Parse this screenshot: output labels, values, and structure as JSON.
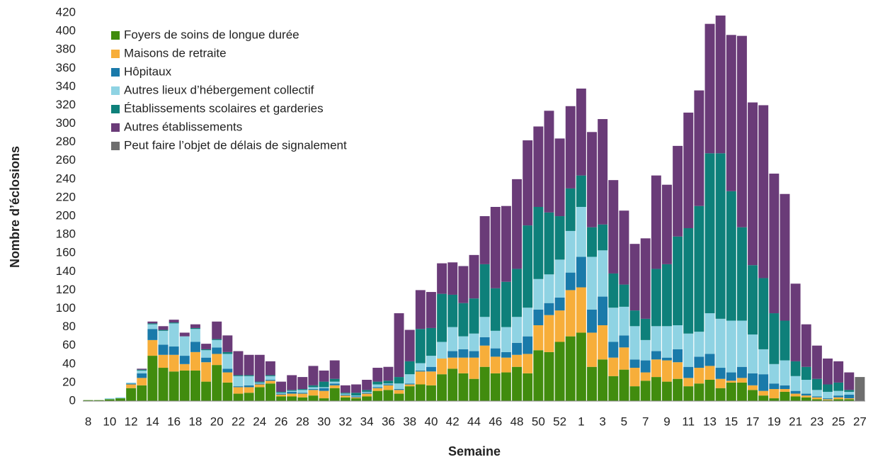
{
  "chart_data": {
    "type": "stacked-bar",
    "x_label": "Semaine",
    "y_label": "Nombre d’éclosions",
    "categories": [
      "8",
      null,
      "10",
      null,
      "12",
      null,
      "14",
      null,
      "16",
      null,
      "18",
      null,
      "20",
      null,
      "22",
      null,
      "24",
      null,
      "26",
      null,
      "28",
      null,
      "30",
      null,
      "32",
      null,
      "34",
      null,
      "36",
      null,
      "38",
      null,
      "40",
      null,
      "42",
      null,
      "44",
      null,
      "46",
      null,
      "48",
      null,
      "50",
      null,
      "52",
      null,
      "1",
      null,
      "3",
      null,
      "5",
      null,
      "7",
      null,
      "9",
      null,
      "11",
      null,
      "13",
      null,
      "15",
      null,
      "17",
      null,
      "19",
      null,
      "21",
      null,
      "23",
      null,
      "25",
      null,
      "27"
    ],
    "ylim": [
      0,
      420
    ],
    "yticks": [
      0,
      20,
      40,
      60,
      80,
      100,
      120,
      140,
      160,
      180,
      200,
      220,
      240,
      260,
      280,
      300,
      320,
      340,
      360,
      380,
      400,
      420
    ],
    "grid": false,
    "legend": "upper left",
    "series": [
      {
        "name": "Foyers de soins de longue durée",
        "color": "#418c0e",
        "values": [
          1,
          1,
          2,
          3,
          14,
          17,
          49,
          36,
          32,
          33,
          33,
          21,
          39,
          20,
          8,
          9,
          15,
          19,
          5,
          5,
          4,
          6,
          3,
          14,
          4,
          3,
          5,
          11,
          12,
          8,
          16,
          18,
          17,
          29,
          35,
          30,
          24,
          37,
          30,
          31,
          37,
          30,
          55,
          53,
          64,
          70,
          74,
          37,
          45,
          27,
          34,
          16,
          22,
          26,
          21,
          24,
          16,
          19,
          23,
          14,
          20,
          20,
          12,
          6,
          3,
          10,
          5,
          4,
          2,
          1,
          2,
          2,
          null
        ]
      },
      {
        "name": "Maisons de retraite",
        "color": "#f7ae3a",
        "values": [
          0,
          0,
          0,
          0,
          4,
          8,
          17,
          14,
          18,
          7,
          20,
          21,
          12,
          11,
          7,
          6,
          3,
          3,
          2,
          3,
          4,
          6,
          8,
          3,
          2,
          1,
          3,
          3,
          5,
          4,
          2,
          14,
          15,
          17,
          12,
          17,
          23,
          23,
          18,
          16,
          13,
          21,
          27,
          40,
          34,
          50,
          49,
          37,
          37,
          20,
          24,
          20,
          9,
          19,
          23,
          18,
          9,
          17,
          15,
          10,
          2,
          5,
          5,
          5,
          10,
          3,
          3,
          2,
          2,
          1,
          2,
          1,
          null
        ]
      },
      {
        "name": "Hôpitaux",
        "color": "#1a7aaa",
        "values": [
          0,
          0,
          0,
          0,
          1,
          5,
          12,
          11,
          9,
          9,
          11,
          5,
          7,
          4,
          1,
          2,
          1,
          1,
          1,
          2,
          1,
          1,
          3,
          2,
          1,
          1,
          1,
          1,
          1,
          1,
          1,
          1,
          5,
          0,
          7,
          9,
          7,
          9,
          9,
          6,
          13,
          19,
          17,
          13,
          14,
          19,
          33,
          25,
          31,
          17,
          13,
          9,
          13,
          9,
          3,
          14,
          12,
          12,
          13,
          12,
          9,
          12,
          13,
          18,
          6,
          4,
          3,
          2,
          1,
          1,
          2,
          4,
          null
        ]
      },
      {
        "name": "Autres lieux d’hébergement collectif",
        "color": "#8fd3e3",
        "values": [
          0,
          0,
          1,
          1,
          1,
          3,
          5,
          15,
          25,
          21,
          14,
          8,
          8,
          16,
          11,
          10,
          1,
          4,
          1,
          1,
          3,
          2,
          1,
          2,
          1,
          1,
          1,
          3,
          1,
          6,
          10,
          8,
          12,
          18,
          26,
          14,
          19,
          22,
          19,
          27,
          28,
          31,
          33,
          31,
          41,
          45,
          54,
          57,
          50,
          37,
          31,
          36,
          22,
          27,
          34,
          26,
          36,
          27,
          44,
          53,
          56,
          50,
          42,
          27,
          21,
          27,
          16,
          15,
          7,
          7,
          5,
          3,
          null
        ]
      },
      {
        "name": "Établissements scolaires et garderies",
        "color": "#0e807a",
        "values": [
          0,
          0,
          0,
          0,
          0,
          1,
          1,
          1,
          1,
          0,
          1,
          1,
          1,
          2,
          1,
          1,
          1,
          1,
          1,
          1,
          1,
          2,
          6,
          3,
          1,
          3,
          2,
          3,
          3,
          7,
          14,
          37,
          30,
          52,
          35,
          36,
          38,
          57,
          46,
          49,
          52,
          89,
          78,
          67,
          47,
          46,
          34,
          32,
          28,
          37,
          24,
          17,
          23,
          62,
          67,
          96,
          114,
          136,
          173,
          179,
          140,
          101,
          75,
          77,
          55,
          43,
          16,
          14,
          12,
          8,
          9,
          2,
          null
        ]
      },
      {
        "name": "Autres établissements",
        "color": "#6a3b78",
        "values": [
          0,
          0,
          0,
          0,
          0,
          1,
          2,
          4,
          3,
          4,
          4,
          6,
          19,
          18,
          26,
          22,
          29,
          15,
          11,
          16,
          13,
          21,
          12,
          20,
          8,
          9,
          11,
          15,
          15,
          69,
          34,
          42,
          39,
          33,
          35,
          40,
          47,
          52,
          88,
          82,
          97,
          92,
          87,
          110,
          84,
          89,
          94,
          103,
          114,
          101,
          80,
          72,
          87,
          101,
          86,
          98,
          125,
          125,
          140,
          149,
          169,
          207,
          176,
          187,
          151,
          137,
          84,
          46,
          36,
          28,
          23,
          19,
          null
        ]
      },
      {
        "name": "Peut faire l’objet de délais de signalement",
        "color": "#6e6e6e",
        "values": [
          null,
          null,
          null,
          null,
          null,
          null,
          null,
          null,
          null,
          null,
          null,
          null,
          null,
          null,
          null,
          null,
          null,
          null,
          null,
          null,
          null,
          null,
          null,
          null,
          null,
          null,
          null,
          null,
          null,
          null,
          null,
          null,
          null,
          null,
          null,
          null,
          null,
          null,
          null,
          null,
          null,
          null,
          null,
          null,
          null,
          null,
          null,
          null,
          null,
          null,
          null,
          null,
          null,
          null,
          null,
          null,
          null,
          null,
          null,
          null,
          null,
          null,
          null,
          null,
          null,
          null,
          null,
          null,
          null,
          null,
          null,
          null,
          26
        ]
      }
    ]
  }
}
